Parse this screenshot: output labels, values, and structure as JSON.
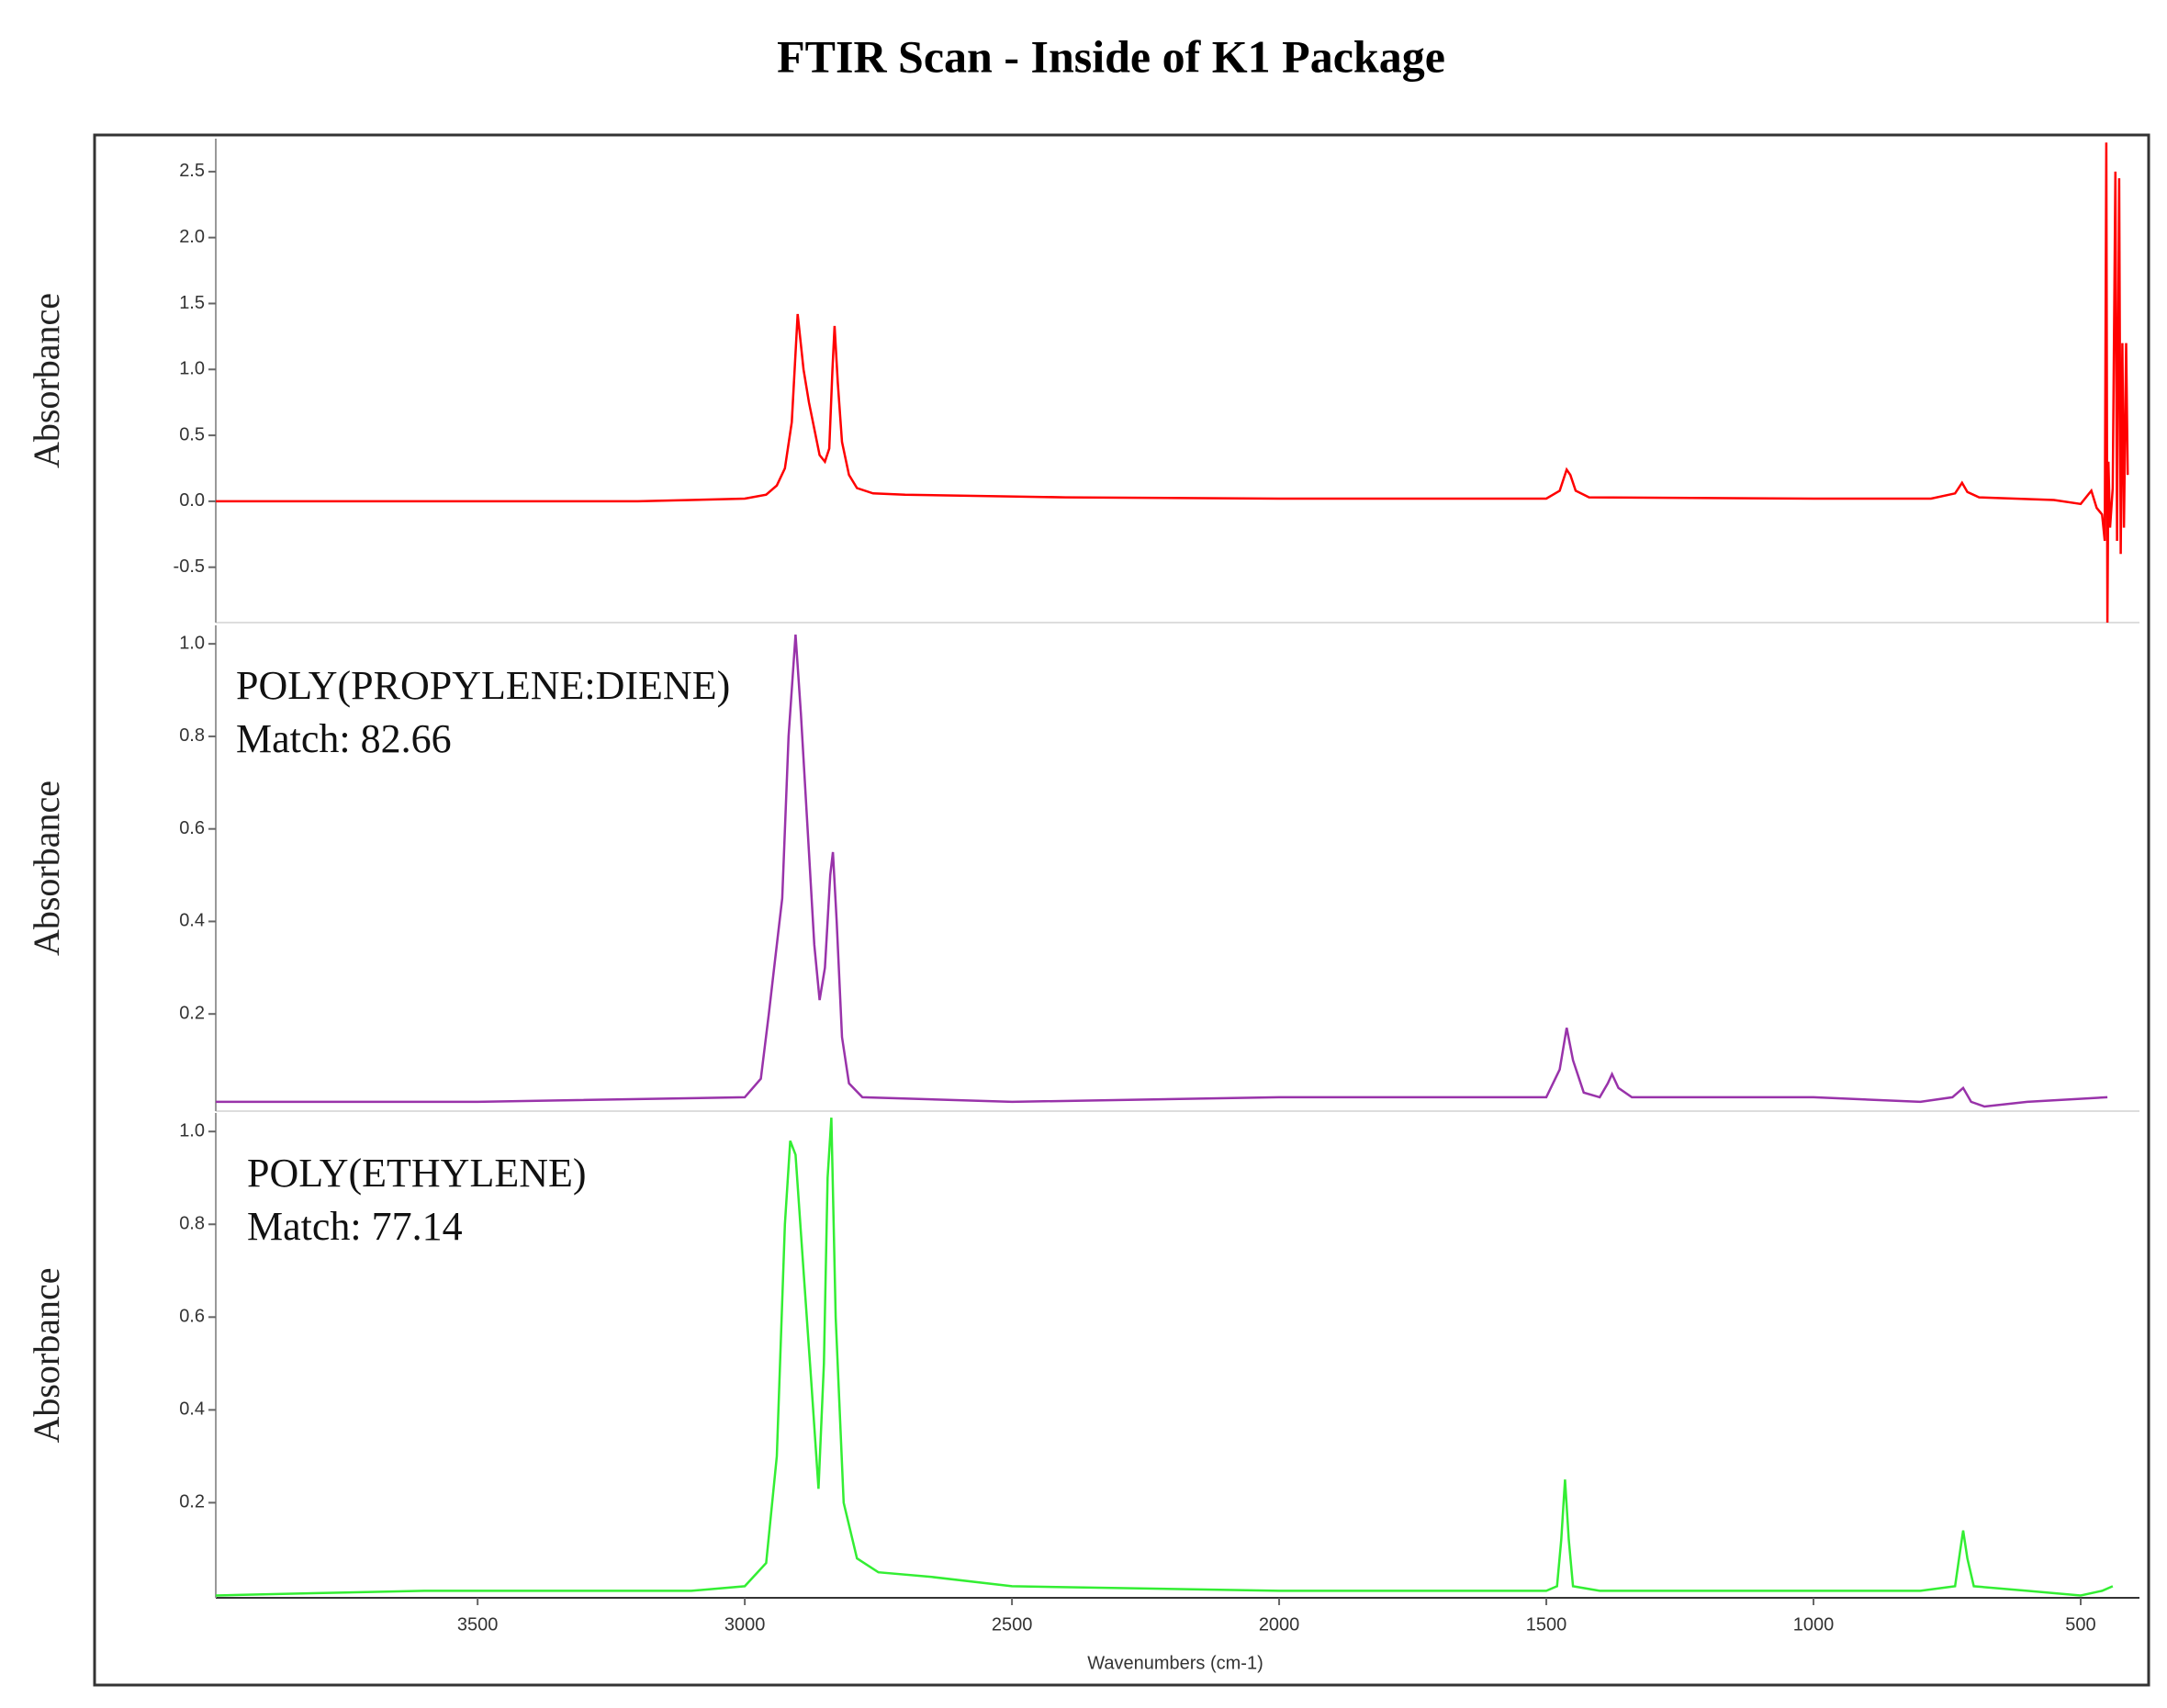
{
  "chart_data": [
    {
      "type": "line",
      "title": "FTIR Scan - Inside of K1 Package",
      "y_label": "Absorbance",
      "color": "#ff0000",
      "xlim": [
        3990,
        390
      ],
      "ylim": [
        -0.92,
        2.75
      ],
      "yticks": [
        -0.5,
        {
          "value": 0,
          "label": "0.0"
        },
        0.5,
        {
          "value": 1,
          "label": "1.0"
        },
        1.5,
        {
          "value": 2,
          "label": "2.0"
        },
        2.5
      ],
      "x": [
        3990,
        3600,
        3200,
        3000,
        2960,
        2940,
        2925,
        2912,
        2901,
        2890,
        2880,
        2870,
        2860,
        2850,
        2842,
        2836,
        2832,
        2826,
        2818,
        2805,
        2790,
        2760,
        2700,
        2400,
        2000,
        1700,
        1500,
        1475,
        1462,
        1455,
        1445,
        1420,
        1000,
        780,
        735,
        722,
        712,
        690,
        550,
        500,
        480,
        470,
        460,
        455,
        452,
        450,
        448,
        445,
        440,
        435,
        432,
        428,
        425,
        422,
        419,
        415,
        412
      ],
      "values": [
        0.0,
        0.0,
        0.0,
        0.02,
        0.05,
        0.12,
        0.25,
        0.6,
        1.42,
        1.0,
        0.75,
        0.55,
        0.35,
        0.3,
        0.4,
        1.0,
        1.33,
        0.9,
        0.45,
        0.2,
        0.1,
        0.06,
        0.05,
        0.03,
        0.02,
        0.02,
        0.02,
        0.08,
        0.24,
        0.2,
        0.08,
        0.03,
        0.02,
        0.02,
        0.06,
        0.14,
        0.07,
        0.03,
        0.01,
        -0.02,
        0.08,
        -0.05,
        -0.1,
        -0.3,
        2.72,
        -0.92,
        0.3,
        -0.2,
        0.1,
        2.5,
        -0.3,
        2.45,
        -0.4,
        1.2,
        -0.2,
        1.2,
        0.2
      ]
    },
    {
      "type": "line",
      "y_label": "Absorbance",
      "annotations": [
        "POLY(PROPYLENE:DIENE)",
        "Match: 82.66"
      ],
      "color": "#9933aa",
      "xlim": [
        3990,
        390
      ],
      "ylim": [
        -0.01,
        1.04
      ],
      "yticks": [
        0.2,
        0.4,
        0.6,
        0.8,
        {
          "value": 1,
          "label": "1.0"
        }
      ],
      "x": [
        3990,
        3500,
        3000,
        2970,
        2955,
        2945,
        2930,
        2918,
        2905,
        2895,
        2880,
        2870,
        2860,
        2850,
        2840,
        2835,
        2828,
        2818,
        2805,
        2780,
        2500,
        2000,
        1700,
        1500,
        1475,
        1462,
        1450,
        1430,
        1400,
        1385,
        1377,
        1365,
        1340,
        1000,
        800,
        740,
        720,
        705,
        680,
        600,
        450
      ],
      "values": [
        0.01,
        0.01,
        0.02,
        0.06,
        0.2,
        0.3,
        0.45,
        0.8,
        1.02,
        0.85,
        0.55,
        0.35,
        0.23,
        0.3,
        0.5,
        0.55,
        0.4,
        0.15,
        0.05,
        0.02,
        0.01,
        0.02,
        0.02,
        0.02,
        0.08,
        0.17,
        0.1,
        0.03,
        0.02,
        0.05,
        0.07,
        0.04,
        0.02,
        0.02,
        0.01,
        0.02,
        0.04,
        0.01,
        0.0,
        0.01,
        0.02
      ]
    },
    {
      "type": "line",
      "y_label": "Absorbance",
      "x_label": "Wavenumbers (cm-1)",
      "annotations": [
        "POLY(ETHYLENE)",
        "Match: 77.14"
      ],
      "color": "#33ee33",
      "xlim": [
        3990,
        390
      ],
      "ylim": [
        -0.005,
        1.04
      ],
      "yticks": [
        0.2,
        0.4,
        0.6,
        0.8,
        {
          "value": 1,
          "label": "1.0"
        }
      ],
      "xticks": [
        3500,
        3000,
        2500,
        2000,
        1500,
        1000,
        500
      ],
      "x": [
        3990,
        3800,
        3600,
        3100,
        3000,
        2960,
        2940,
        2925,
        2915,
        2905,
        2890,
        2875,
        2862,
        2852,
        2845,
        2838,
        2830,
        2815,
        2790,
        2750,
        2650,
        2500,
        2000,
        1500,
        1480,
        1472,
        1465,
        1458,
        1450,
        1400,
        800,
        735,
        725,
        720,
        712,
        700,
        600,
        500,
        460,
        440
      ],
      "values": [
        0.0,
        0.005,
        0.01,
        0.01,
        0.02,
        0.07,
        0.3,
        0.8,
        0.98,
        0.95,
        0.7,
        0.45,
        0.23,
        0.5,
        0.9,
        1.03,
        0.6,
        0.2,
        0.08,
        0.05,
        0.04,
        0.02,
        0.01,
        0.01,
        0.02,
        0.12,
        0.25,
        0.12,
        0.02,
        0.01,
        0.01,
        0.02,
        0.1,
        0.14,
        0.08,
        0.02,
        0.01,
        0.0,
        0.01,
        0.02
      ]
    }
  ]
}
